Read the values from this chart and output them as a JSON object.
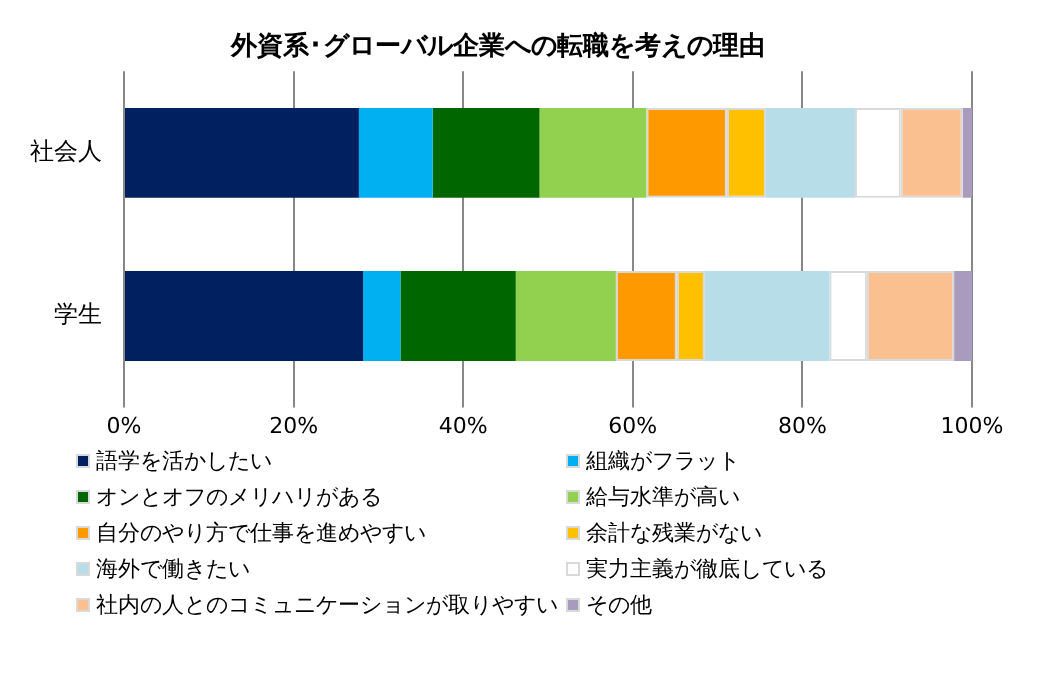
{
  "chart_data": {
    "type": "bar",
    "orientation": "horizontal",
    "stacked": true,
    "title": "外資系･グローバル企業への転職を考えの理由",
    "categories": [
      "社会人",
      "学生"
    ],
    "series": [
      {
        "name": "語学を活かしたい",
        "color": "#002060",
        "values": [
          27.7,
          28.2
        ]
      },
      {
        "name": "組織がフラット",
        "color": "#00b0f0",
        "values": [
          8.7,
          4.4
        ]
      },
      {
        "name": "オンとオフのメリハリがある",
        "color": "#006600",
        "values": [
          12.6,
          13.6
        ]
      },
      {
        "name": "給与水準が高い",
        "color": "#92d050",
        "values": [
          12.6,
          11.8
        ]
      },
      {
        "name": "自分のやり方で仕事を進めやすい",
        "color": "#ff9900",
        "values": [
          9.5,
          7.2
        ]
      },
      {
        "name": "余計な残業がない",
        "color": "#ffc000",
        "values": [
          4.6,
          3.3
        ]
      },
      {
        "name": "海外で働きたい",
        "color": "#b7dee8",
        "values": [
          10.5,
          14.7
        ]
      },
      {
        "name": "実力主義が徹底している",
        "color": "#ffffff",
        "values": [
          5.4,
          4.4
        ]
      },
      {
        "name": "社内の人とのコミュニケーションが取りやすい",
        "color": "#fac090",
        "values": [
          7.3,
          10.3
        ]
      },
      {
        "name": "その他",
        "color": "#a99bbd",
        "values": [
          1.1,
          2.1
        ]
      }
    ],
    "xlim": [
      0,
      100
    ],
    "xticks": [
      {
        "value": 0,
        "label": "0%"
      },
      {
        "value": 20,
        "label": "20%"
      },
      {
        "value": 40,
        "label": "40%"
      },
      {
        "value": 60,
        "label": "60%"
      },
      {
        "value": 80,
        "label": "80%"
      },
      {
        "value": 100,
        "label": "100%"
      }
    ],
    "grid": "x",
    "legend": "bottom"
  }
}
